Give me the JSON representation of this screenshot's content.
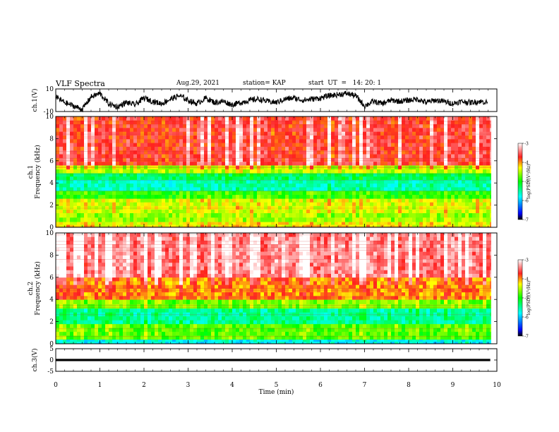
{
  "header": {
    "title": "VLF Spectra",
    "date": "Aug.29, 2021",
    "station": "station= KAP",
    "start": "start  UT  =   14: 20: 1"
  },
  "chart_data": [
    {
      "type": "line",
      "panel": "ch1-waveform",
      "ylabel": "ch.1(V)",
      "ylim": [
        -10,
        10
      ],
      "yticks": [
        "10",
        "-10"
      ],
      "xlim": [
        0,
        10
      ],
      "series": [
        {
          "color": "#000000",
          "x": [
            0.0,
            0.2,
            0.4,
            0.6,
            0.8,
            1.0,
            1.2,
            1.4,
            1.6,
            1.8,
            2.0,
            2.2,
            2.4,
            2.6,
            2.8,
            3.0,
            3.2,
            3.4,
            3.6,
            3.8,
            4.0,
            4.2,
            4.4,
            4.6,
            4.8,
            5.0,
            5.2,
            5.4,
            5.6,
            5.8,
            6.0,
            6.2,
            6.4,
            6.6,
            6.8,
            7.0,
            7.2,
            7.4,
            7.6,
            7.8,
            8.0,
            8.2,
            8.4,
            8.6,
            8.8,
            9.0,
            9.2,
            9.4,
            9.6,
            9.8
          ],
          "y": [
            3,
            -2,
            -5,
            -8,
            3,
            6,
            -3,
            -6,
            -2,
            -4,
            2,
            -1,
            -3,
            1,
            4,
            0,
            -3,
            2,
            -2,
            -1,
            -4,
            -2,
            0,
            1,
            -1,
            -2,
            1,
            2,
            0,
            1,
            2,
            4,
            5,
            6,
            4,
            -5,
            -1,
            -3,
            0,
            -1,
            0,
            1,
            -2,
            0,
            -1,
            -3,
            -1,
            -2,
            -1,
            -2
          ]
        }
      ]
    },
    {
      "type": "heatmap",
      "panel": "ch1-spectrogram",
      "ylabel": "Frequency  (kHz)",
      "channel_label": "ch.1",
      "ylim": [
        0,
        10
      ],
      "xlim": [
        0,
        10
      ],
      "yticks": [
        "0",
        "2",
        "4",
        "6",
        "8",
        "10"
      ],
      "colorbar": {
        "label": "log(PSD)(V²/Hz)",
        "range": [
          -7,
          -3
        ],
        "ticks": [
          "-3",
          "-4",
          "-5",
          "-6",
          "-7"
        ]
      },
      "freq_bands_log_psd": [
        {
          "f": [
            0.0,
            0.5
          ],
          "level": -4.3
        },
        {
          "f": [
            0.5,
            1.3
          ],
          "level": -4.6
        },
        {
          "f": [
            1.3,
            2.6
          ],
          "level": -4.4
        },
        {
          "f": [
            2.6,
            3.3
          ],
          "level": -4.9
        },
        {
          "f": [
            3.3,
            4.3
          ],
          "level": -5.6
        },
        {
          "f": [
            4.3,
            4.9
          ],
          "level": -5.3
        },
        {
          "f": [
            4.9,
            5.6
          ],
          "level": -4.5
        },
        {
          "f": [
            5.6,
            10.0
          ],
          "level": -3.7
        }
      ]
    },
    {
      "type": "heatmap",
      "panel": "ch2-spectrogram",
      "ylabel": "Frequency  (kHz)",
      "channel_label": "ch.2",
      "ylim": [
        0,
        10
      ],
      "xlim": [
        0,
        10
      ],
      "yticks": [
        "0",
        "2",
        "4",
        "6",
        "8",
        "10"
      ],
      "colorbar": {
        "label": "log(PSD)(V²/Hz)",
        "range": [
          -7,
          -3
        ],
        "ticks": [
          "-3",
          "-4",
          "-5",
          "-6",
          "-7"
        ]
      },
      "freq_bands_log_psd": [
        {
          "f": [
            0.0,
            0.4
          ],
          "level": -5.8
        },
        {
          "f": [
            0.4,
            1.8
          ],
          "level": -4.8
        },
        {
          "f": [
            1.8,
            3.2
          ],
          "level": -5.5
        },
        {
          "f": [
            3.2,
            4.0
          ],
          "level": -4.7
        },
        {
          "f": [
            4.0,
            6.0
          ],
          "level": -4.0
        },
        {
          "f": [
            6.0,
            10.0
          ],
          "level": -3.4
        }
      ]
    },
    {
      "type": "line",
      "panel": "ch3-waveform",
      "ylabel": "ch.3(V)",
      "ylim": [
        -5,
        5
      ],
      "yticks": [
        "5",
        "0",
        "-5"
      ],
      "xlim": [
        0,
        10
      ],
      "xlabel": "Time  (min)",
      "xticks": [
        "0",
        "1",
        "2",
        "3",
        "4",
        "5",
        "6",
        "7",
        "8",
        "9",
        "10"
      ],
      "series": [
        {
          "color": "#000000",
          "band": [
            -0.5,
            0.5
          ],
          "x": [
            0,
            9.85
          ]
        }
      ]
    }
  ]
}
